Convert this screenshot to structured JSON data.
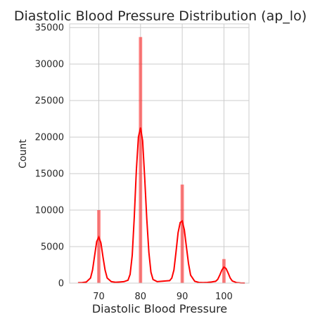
{
  "chart_data": {
    "type": "bar",
    "title": "Diastolic Blood Pressure Distribution (ap_lo)",
    "xlabel": "Diastolic Blood Pressure",
    "ylabel": "Count",
    "xlim": [
      63,
      106
    ],
    "ylim": [
      0,
      35500
    ],
    "xticks": [
      70,
      80,
      90,
      100
    ],
    "yticks": [
      0,
      5000,
      10000,
      15000,
      20000,
      25000,
      30000,
      35000
    ],
    "grid": true,
    "bar_color": "#ff0000",
    "bar_opacity": 0.5,
    "kde_color": "#ff0000",
    "bins": [
      {
        "x0": 69.6,
        "x1": 70.4,
        "value": 10000
      },
      {
        "x0": 79.6,
        "x1": 80.4,
        "value": 33700
      },
      {
        "x0": 89.6,
        "x1": 90.4,
        "value": 13500
      },
      {
        "x0": 99.6,
        "x1": 100.4,
        "value": 3300
      }
    ],
    "kde": {
      "x": [
        65,
        66,
        67,
        68,
        68.5,
        69,
        69.5,
        70,
        70.5,
        71,
        71.5,
        72,
        73,
        74,
        75,
        76,
        77,
        77.5,
        78,
        78.5,
        79,
        79.5,
        80,
        80.5,
        81,
        81.5,
        82,
        82.5,
        83,
        84,
        85,
        86,
        87,
        87.5,
        88,
        88.5,
        89,
        89.5,
        90,
        90.5,
        91,
        91.5,
        92,
        93,
        94,
        95,
        96,
        97,
        98,
        98.5,
        99,
        99.5,
        100,
        100.5,
        101,
        101.5,
        102,
        103,
        104,
        105
      ],
      "y": [
        50,
        80,
        150,
        700,
        1800,
        3800,
        5700,
        6300,
        5500,
        3600,
        1800,
        700,
        200,
        120,
        150,
        200,
        400,
        1200,
        3800,
        9000,
        15500,
        20000,
        21300,
        19500,
        14500,
        8800,
        4200,
        1500,
        500,
        200,
        250,
        300,
        350,
        700,
        1800,
        4200,
        6900,
        8300,
        8500,
        7300,
        5000,
        2700,
        1100,
        250,
        100,
        80,
        100,
        150,
        250,
        500,
        1100,
        1800,
        2200,
        2000,
        1400,
        700,
        300,
        80,
        30,
        10
      ]
    }
  }
}
